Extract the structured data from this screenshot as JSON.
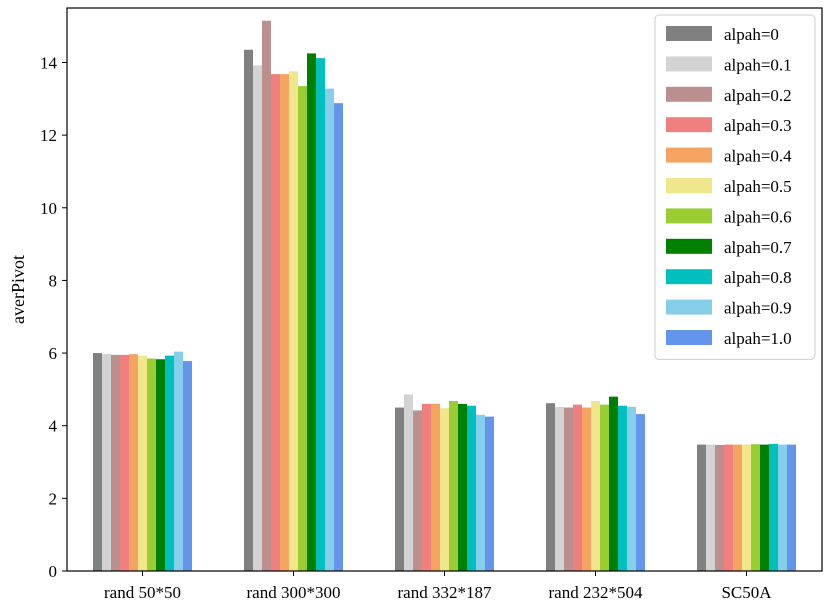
{
  "chart_data": {
    "type": "bar",
    "title": "",
    "xlabel": "",
    "ylabel": "averPivot",
    "ylim": [
      0,
      15.5
    ],
    "yticks": [
      0,
      2,
      4,
      6,
      8,
      10,
      12,
      14
    ],
    "grid": false,
    "legend_position": "top-right",
    "categories": [
      "rand 50*50",
      "rand 300*300",
      "rand 332*187",
      "rand 232*504",
      "SC50A"
    ],
    "series": [
      {
        "name": "alpah=0",
        "color": "#808080",
        "values": [
          6.0,
          14.35,
          4.5,
          4.62,
          3.48
        ]
      },
      {
        "name": "alpah=0.1",
        "color": "#d3d3d3",
        "values": [
          5.97,
          13.92,
          4.86,
          4.52,
          3.48
        ]
      },
      {
        "name": "alpah=0.2",
        "color": "#bc8f8f",
        "values": [
          5.95,
          15.15,
          4.42,
          4.5,
          3.47
        ]
      },
      {
        "name": "alpah=0.3",
        "color": "#f08080",
        "values": [
          5.95,
          13.68,
          4.6,
          4.58,
          3.48
        ]
      },
      {
        "name": "alpah=0.4",
        "color": "#f4a460",
        "values": [
          5.97,
          13.68,
          4.6,
          4.5,
          3.48
        ]
      },
      {
        "name": "alpah=0.5",
        "color": "#f0e68c",
        "values": [
          5.92,
          13.76,
          4.48,
          4.68,
          3.48
        ]
      },
      {
        "name": "alpah=0.6",
        "color": "#9acd32",
        "values": [
          5.85,
          13.35,
          4.68,
          4.58,
          3.49
        ]
      },
      {
        "name": "alpah=0.7",
        "color": "#008000",
        "values": [
          5.83,
          14.25,
          4.6,
          4.8,
          3.48
        ]
      },
      {
        "name": "alpah=0.8",
        "color": "#00bfbf",
        "values": [
          5.93,
          14.12,
          4.55,
          4.55,
          3.5
        ]
      },
      {
        "name": "alpah=0.9",
        "color": "#87ceeb",
        "values": [
          6.04,
          13.28,
          4.3,
          4.52,
          3.48
        ]
      },
      {
        "name": "alpah=1.0",
        "color": "#6495ed",
        "values": [
          5.78,
          12.88,
          4.25,
          4.32,
          3.48
        ]
      }
    ]
  }
}
